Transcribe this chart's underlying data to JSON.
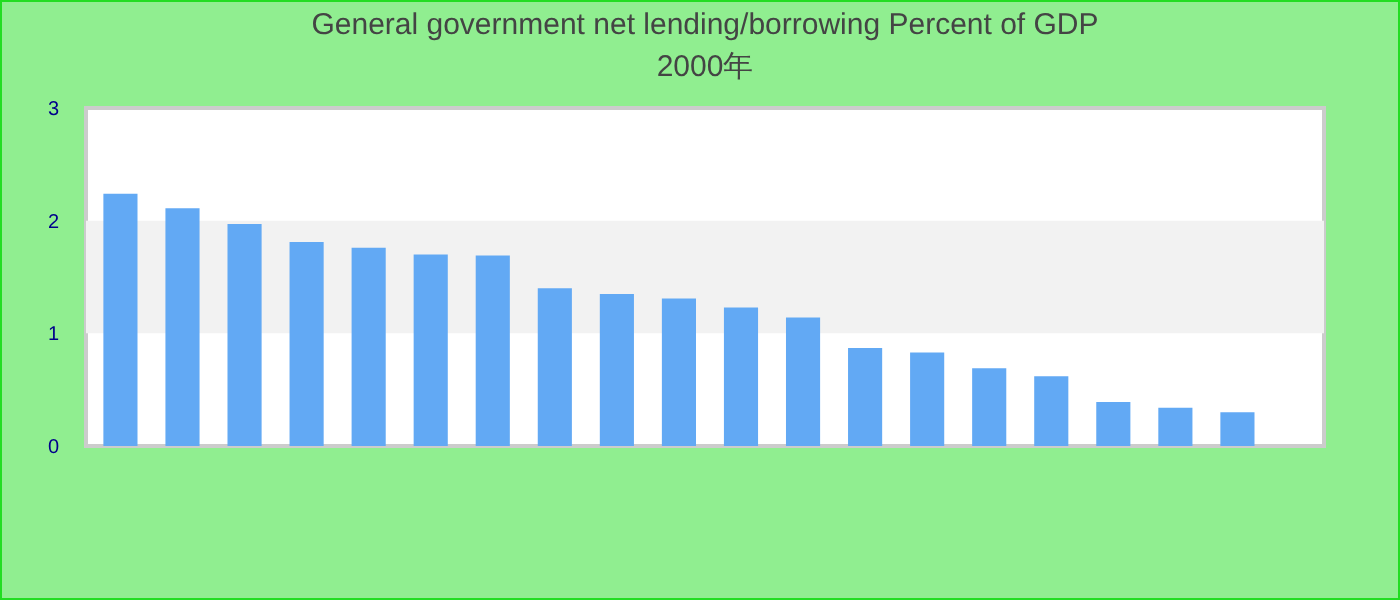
{
  "chart_data": {
    "type": "bar",
    "title": "General government net lending/borrowing  Percent of GDP",
    "subtitle": "2000年",
    "categories": [
      null,
      null,
      null,
      null,
      null,
      null,
      null,
      null,
      null,
      null,
      null,
      null,
      null,
      null,
      null,
      null,
      null,
      null,
      null
    ],
    "values": [
      2.24,
      2.11,
      1.97,
      1.81,
      1.76,
      1.7,
      1.69,
      1.4,
      1.35,
      1.31,
      1.23,
      1.14,
      0.87,
      0.83,
      0.69,
      0.62,
      0.39,
      0.34,
      0.3
    ],
    "color": "#62a9f4",
    "ylim": [
      0,
      3
    ],
    "yticks": [
      0,
      1,
      2,
      3
    ],
    "bands": [
      {
        "axis": "y",
        "from": 1,
        "to": 2,
        "color": "#f2f2f2"
      }
    ]
  }
}
